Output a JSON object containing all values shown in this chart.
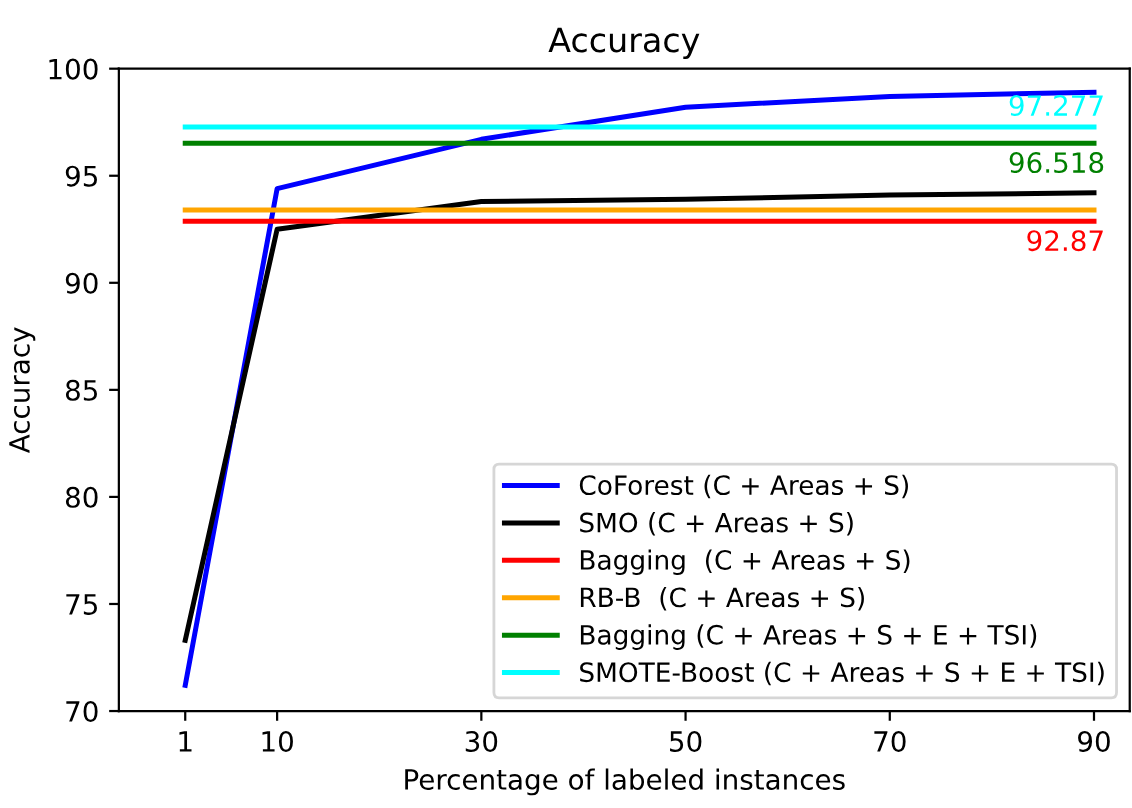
{
  "chart_data": {
    "type": "line",
    "title": "Accuracy",
    "xlabel": "Percentage of labeled instances",
    "ylabel": "Accuracy",
    "x": [
      1,
      10,
      30,
      50,
      70,
      90
    ],
    "series": [
      {
        "name": "CoForest (C + Areas + S)",
        "color": "#0000ff",
        "values": [
          71.2,
          94.4,
          96.7,
          98.2,
          98.7,
          98.9
        ]
      },
      {
        "name": "SMO (C + Areas + S)",
        "color": "#000000",
        "values": [
          73.3,
          92.5,
          93.8,
          93.9,
          94.1,
          94.2
        ]
      },
      {
        "name": "Bagging  (C + Areas + S)",
        "color": "#ff0000",
        "values": [
          92.87,
          92.87,
          92.87,
          92.87,
          92.87,
          92.87
        ]
      },
      {
        "name": "RB-B  (C + Areas + S)",
        "color": "#ffa500",
        "values": [
          93.4,
          93.4,
          93.4,
          93.4,
          93.4,
          93.4
        ]
      },
      {
        "name": "Bagging (C + Areas + S + E + TSI)",
        "color": "#008000",
        "values": [
          96.518,
          96.518,
          96.518,
          96.518,
          96.518,
          96.518
        ]
      },
      {
        "name": "SMOTE-Boost (C + Areas + S + E + TSI)",
        "color": "#00ffff",
        "values": [
          97.277,
          97.277,
          97.277,
          97.277,
          97.277,
          97.277
        ]
      }
    ],
    "annotations": [
      {
        "text": "97.277",
        "y": 97.277
      },
      {
        "text": "96.518",
        "y": 96.518
      },
      {
        "text": "92.87",
        "y": 92.87
      }
    ],
    "xlim": [
      -5.5,
      93.5
    ],
    "xticks": [
      1,
      10,
      30,
      50,
      70,
      90
    ],
    "ylim": [
      70,
      100
    ],
    "yticks": [
      70,
      75,
      80,
      85,
      90,
      95,
      100
    ],
    "grid": false,
    "legend": "bottom right",
    "marker": "none",
    "line_style": "solid"
  }
}
